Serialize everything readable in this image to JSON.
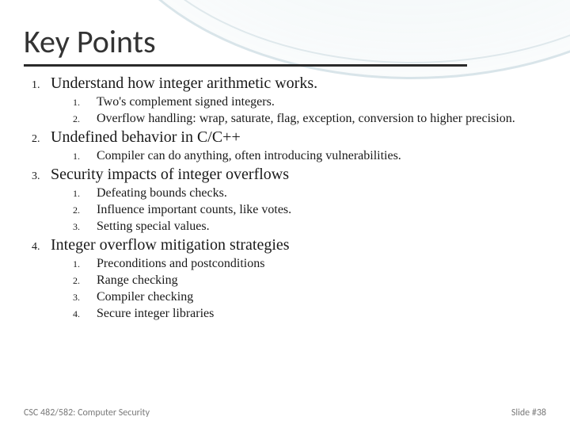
{
  "title": "Key Points",
  "title_color": "#333333",
  "title_fontsize": 40,
  "underline_color": "#2a2a2a",
  "background_color": "#ffffff",
  "arc_color": "rgba(120,160,175,0.25)",
  "body_fontsize_outer": 20,
  "body_fontsize_inner": 16,
  "text_color": "#1a1a1a",
  "items": [
    {
      "num": "1.",
      "text": "Understand how integer arithmetic works.",
      "sub": [
        {
          "num": "1.",
          "text": "Two's complement signed integers."
        },
        {
          "num": "2.",
          "text": "Overflow handling: wrap, saturate, flag, exception, conversion to higher precision."
        }
      ]
    },
    {
      "num": "2.",
      "text": "Undefined behavior in C/C++",
      "sub": [
        {
          "num": "1.",
          "text": "Compiler can do anything, often introducing vulnerabilities."
        }
      ]
    },
    {
      "num": "3.",
      "text": "Security impacts of integer overflows",
      "sub": [
        {
          "num": "1.",
          "text": "Defeating bounds checks."
        },
        {
          "num": "2.",
          "text": "Influence important counts, like votes."
        },
        {
          "num": "3.",
          "text": "Setting special values."
        }
      ]
    },
    {
      "num": "4.",
      "text": "Integer overflow mitigation strategies",
      "sub": [
        {
          "num": "1.",
          "text": "Preconditions and postconditions"
        },
        {
          "num": "2.",
          "text": "Range checking"
        },
        {
          "num": "3.",
          "text": "Compiler checking"
        },
        {
          "num": "4.",
          "text": "Secure integer libraries"
        }
      ]
    }
  ],
  "footer": {
    "left": "CSC 482/582: Computer Security",
    "right": "Slide #38",
    "color": "#7a7a7a",
    "fontsize": 12
  }
}
